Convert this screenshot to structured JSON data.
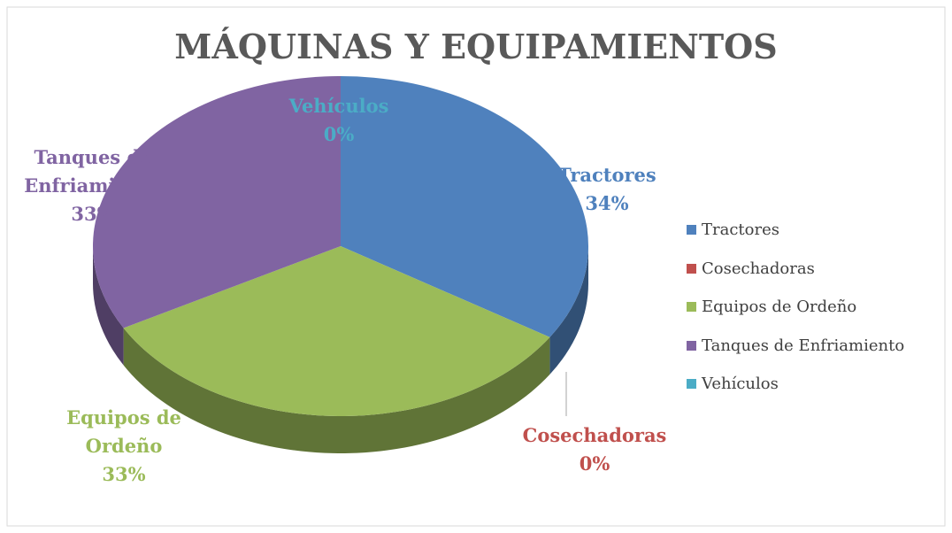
{
  "chart_data": {
    "type": "pie",
    "title": "MÁQUINAS Y EQUIPAMIENTOS",
    "categories": [
      "Tractores",
      "Cosechadoras",
      "Equipos de Ordeño",
      "Tanques de Enfriamiento",
      "Vehículos"
    ],
    "values": [
      34,
      0,
      33,
      33,
      0
    ],
    "value_labels": [
      "34%",
      "0%",
      "33%",
      "33%",
      "0%"
    ],
    "colors": [
      "#4f81bd",
      "#c0504d",
      "#9bbb59",
      "#8064a2",
      "#4bacc6"
    ],
    "legend": "right"
  }
}
